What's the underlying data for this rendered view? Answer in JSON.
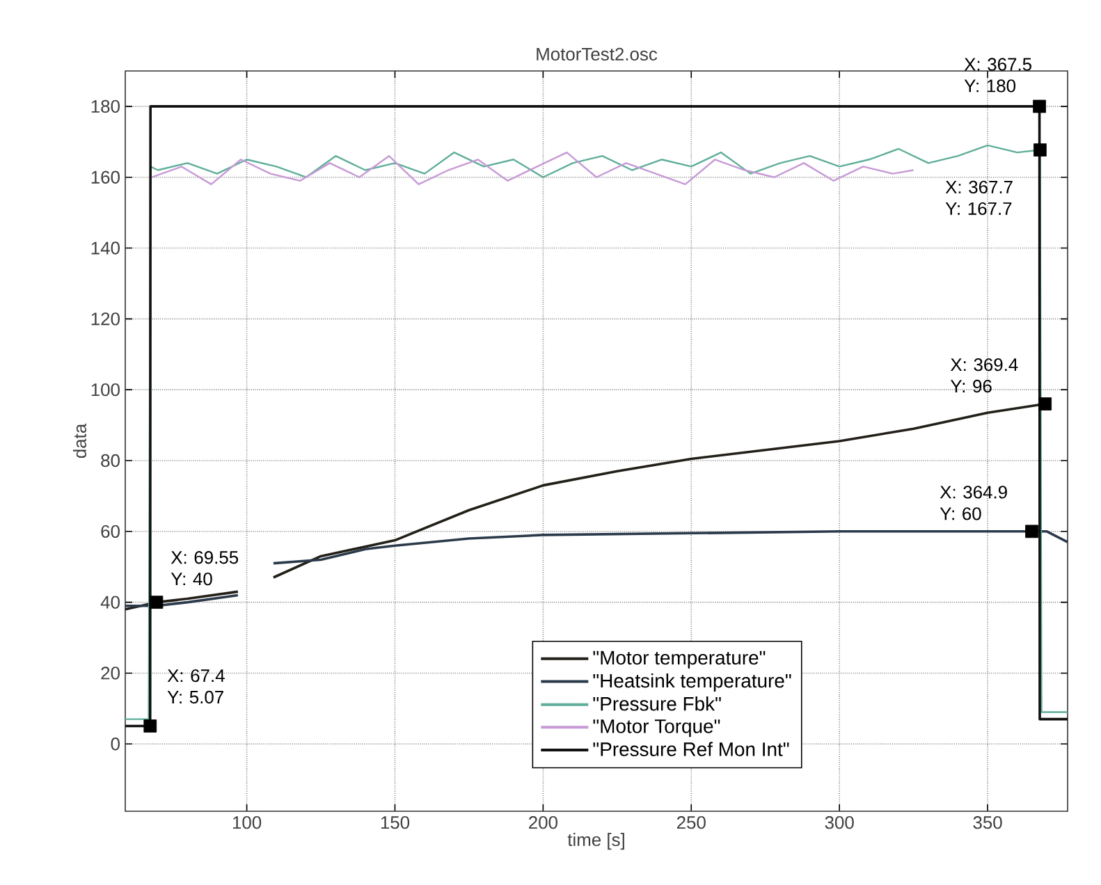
{
  "chart_data": {
    "type": "line",
    "title": "MotorTest2.osc",
    "xlabel": "time [s]",
    "ylabel": "data",
    "xlim": [
      59,
      377
    ],
    "ylim": [
      -19,
      190
    ],
    "xticks": [
      100,
      150,
      200,
      250,
      300,
      350
    ],
    "yticks": [
      0,
      20,
      40,
      60,
      80,
      100,
      120,
      140,
      160,
      180
    ],
    "grid": true,
    "legend": "bottom",
    "line_style": "solid",
    "marker": "none",
    "series": [
      {
        "name": "\"Motor temperature\"",
        "color": "#222018",
        "x": [
          59,
          69.55,
          80,
          97,
          103,
          109,
          125,
          150,
          175,
          200,
          225,
          250,
          275,
          300,
          325,
          350,
          369.4
        ],
        "values": [
          38,
          40,
          41,
          43,
          null,
          47,
          53,
          57.5,
          66,
          73,
          77,
          80.5,
          83,
          85.5,
          89,
          93.5,
          96
        ]
      },
      {
        "name": "\"Heatsink temperature\"",
        "color": "#2b3a4a",
        "x": [
          59,
          69.55,
          80,
          97,
          103,
          109,
          125,
          140,
          150,
          175,
          200,
          250,
          300,
          364.9,
          370,
          377
        ],
        "values": [
          39,
          39,
          40,
          42,
          null,
          51,
          52,
          55,
          56,
          58,
          59,
          59.5,
          60,
          60,
          60,
          57
        ]
      },
      {
        "name": "\"Pressure Fbk\"",
        "color": "#5fae9a",
        "x": [
          59,
          66.9,
          67.5,
          70,
          80,
          90,
          100,
          110,
          120,
          130,
          140,
          150,
          160,
          170,
          180,
          190,
          200,
          210,
          220,
          230,
          240,
          250,
          260,
          270,
          280,
          290,
          300,
          310,
          320,
          330,
          340,
          350,
          360,
          367.7,
          368.2,
          377
        ],
        "values": [
          7,
          7,
          163,
          162,
          164,
          161,
          165,
          163,
          160,
          166,
          162,
          164,
          161,
          167,
          163,
          165,
          160,
          164,
          166,
          162,
          165,
          163,
          167,
          161,
          164,
          166,
          163,
          165,
          168,
          164,
          166,
          169,
          167,
          167.7,
          9,
          9
        ]
      },
      {
        "name": "\"Motor Torque\"",
        "color": "#c79ad6",
        "x": [
          68,
          78,
          88,
          98,
          108,
          118,
          128,
          138,
          148,
          158,
          168,
          178,
          188,
          198,
          208,
          218,
          228,
          238,
          248,
          258,
          268,
          278,
          288,
          298,
          308,
          318,
          325
        ],
        "values": [
          160,
          163,
          158,
          165,
          161,
          159,
          164,
          160,
          166,
          158,
          162,
          165,
          159,
          163,
          167,
          160,
          164,
          161,
          158,
          165,
          162,
          160,
          164,
          159,
          163,
          161,
          162
        ]
      },
      {
        "name": "\"Pressure Ref Mon Int\"",
        "color": "#111111",
        "x": [
          59,
          67.4,
          67.5,
          367.5,
          367.6,
          377
        ],
        "values": [
          5.07,
          5.07,
          180,
          180,
          7,
          7
        ]
      }
    ],
    "annotations": [
      {
        "text": "X: 367.5 Y: 180",
        "x": 367.5,
        "y": 180
      },
      {
        "text": "X: 367.7 Y: 167.7",
        "x": 367.7,
        "y": 167.7
      },
      {
        "text": "X: 369.4 Y: 96",
        "x": 369.4,
        "y": 96
      },
      {
        "text": "X: 364.9 Y: 60",
        "x": 364.9,
        "y": 60
      },
      {
        "text": "X: 69.55 Y: 40",
        "x": 69.55,
        "y": 40
      },
      {
        "text": "X: 67.4 Y: 5.07",
        "x": 67.4,
        "y": 5.07
      }
    ]
  }
}
